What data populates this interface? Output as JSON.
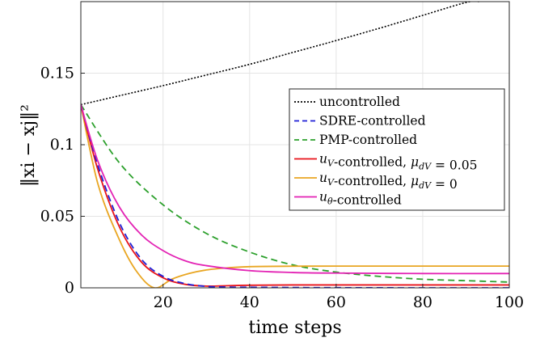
{
  "chart_data": {
    "type": "line",
    "xlabel": "time steps",
    "ylabel": "‖xi − xj‖²",
    "xlim": [
      1,
      100
    ],
    "ylim": [
      0,
      0.2
    ],
    "xticks": [
      20,
      40,
      60,
      80,
      100
    ],
    "xtick_labels": [
      "20",
      "40",
      "60",
      "80",
      "100"
    ],
    "yticks": [
      0,
      0.05,
      0.1,
      0.15
    ],
    "ytick_labels": [
      "0",
      "0.05",
      "0.1",
      "0.15"
    ],
    "grid": true,
    "legend_position": "center-right",
    "series": [
      {
        "name": "uncontrolled",
        "color": "#000000",
        "dash": "2,2",
        "x": [
          1,
          10,
          20,
          30,
          40,
          50,
          60,
          70,
          80,
          90,
          93
        ],
        "y": [
          0.128,
          0.1343,
          0.1413,
          0.1487,
          0.1562,
          0.1645,
          0.1728,
          0.1814,
          0.1904,
          0.1994,
          0.2
        ]
      },
      {
        "name": "SDRE-controlled",
        "color": "#1f1fd6",
        "dash": "8,5",
        "x": [
          1,
          5,
          10,
          15,
          20,
          25,
          30,
          35,
          40,
          50,
          60,
          80,
          100
        ],
        "y": [
          0.128,
          0.085,
          0.045,
          0.02,
          0.008,
          0.003,
          0.001,
          0.0005,
          0.0004,
          0.0002,
          0.0001,
          0.0,
          0.0
        ]
      },
      {
        "name": "PMP-controlled",
        "color": "#2ca02c",
        "dash": "8,5",
        "x": [
          1,
          10,
          20,
          30,
          40,
          50,
          60,
          70,
          80,
          90,
          100
        ],
        "y": [
          0.128,
          0.087,
          0.058,
          0.038,
          0.025,
          0.016,
          0.011,
          0.008,
          0.006,
          0.005,
          0.004
        ]
      },
      {
        "name": "uV-controlled, μdV = 0.05",
        "color": "#e8131a",
        "dash": "",
        "x": [
          1,
          5,
          10,
          15,
          20,
          25,
          30,
          35,
          40,
          50,
          60,
          80,
          100
        ],
        "y": [
          0.128,
          0.082,
          0.042,
          0.018,
          0.007,
          0.0025,
          0.0012,
          0.0015,
          0.0018,
          0.002,
          0.002,
          0.002,
          0.002
        ]
      },
      {
        "name": "uV-controlled, μdV = 0",
        "color": "#e9a622",
        "dash": "",
        "x": [
          1,
          5,
          10,
          14,
          18,
          22,
          26,
          30,
          35,
          40,
          50,
          60,
          80,
          100
        ],
        "y": [
          0.128,
          0.072,
          0.033,
          0.011,
          0.0,
          0.006,
          0.01,
          0.0125,
          0.014,
          0.0148,
          0.0151,
          0.0152,
          0.0152,
          0.0152
        ]
      },
      {
        "name": "uθ-controlled",
        "color": "#e323b4",
        "dash": "",
        "x": [
          1,
          5,
          10,
          15,
          20,
          25,
          30,
          40,
          50,
          60,
          80,
          100
        ],
        "y": [
          0.128,
          0.088,
          0.056,
          0.037,
          0.026,
          0.019,
          0.0155,
          0.012,
          0.0107,
          0.0103,
          0.01,
          0.01
        ]
      }
    ]
  }
}
